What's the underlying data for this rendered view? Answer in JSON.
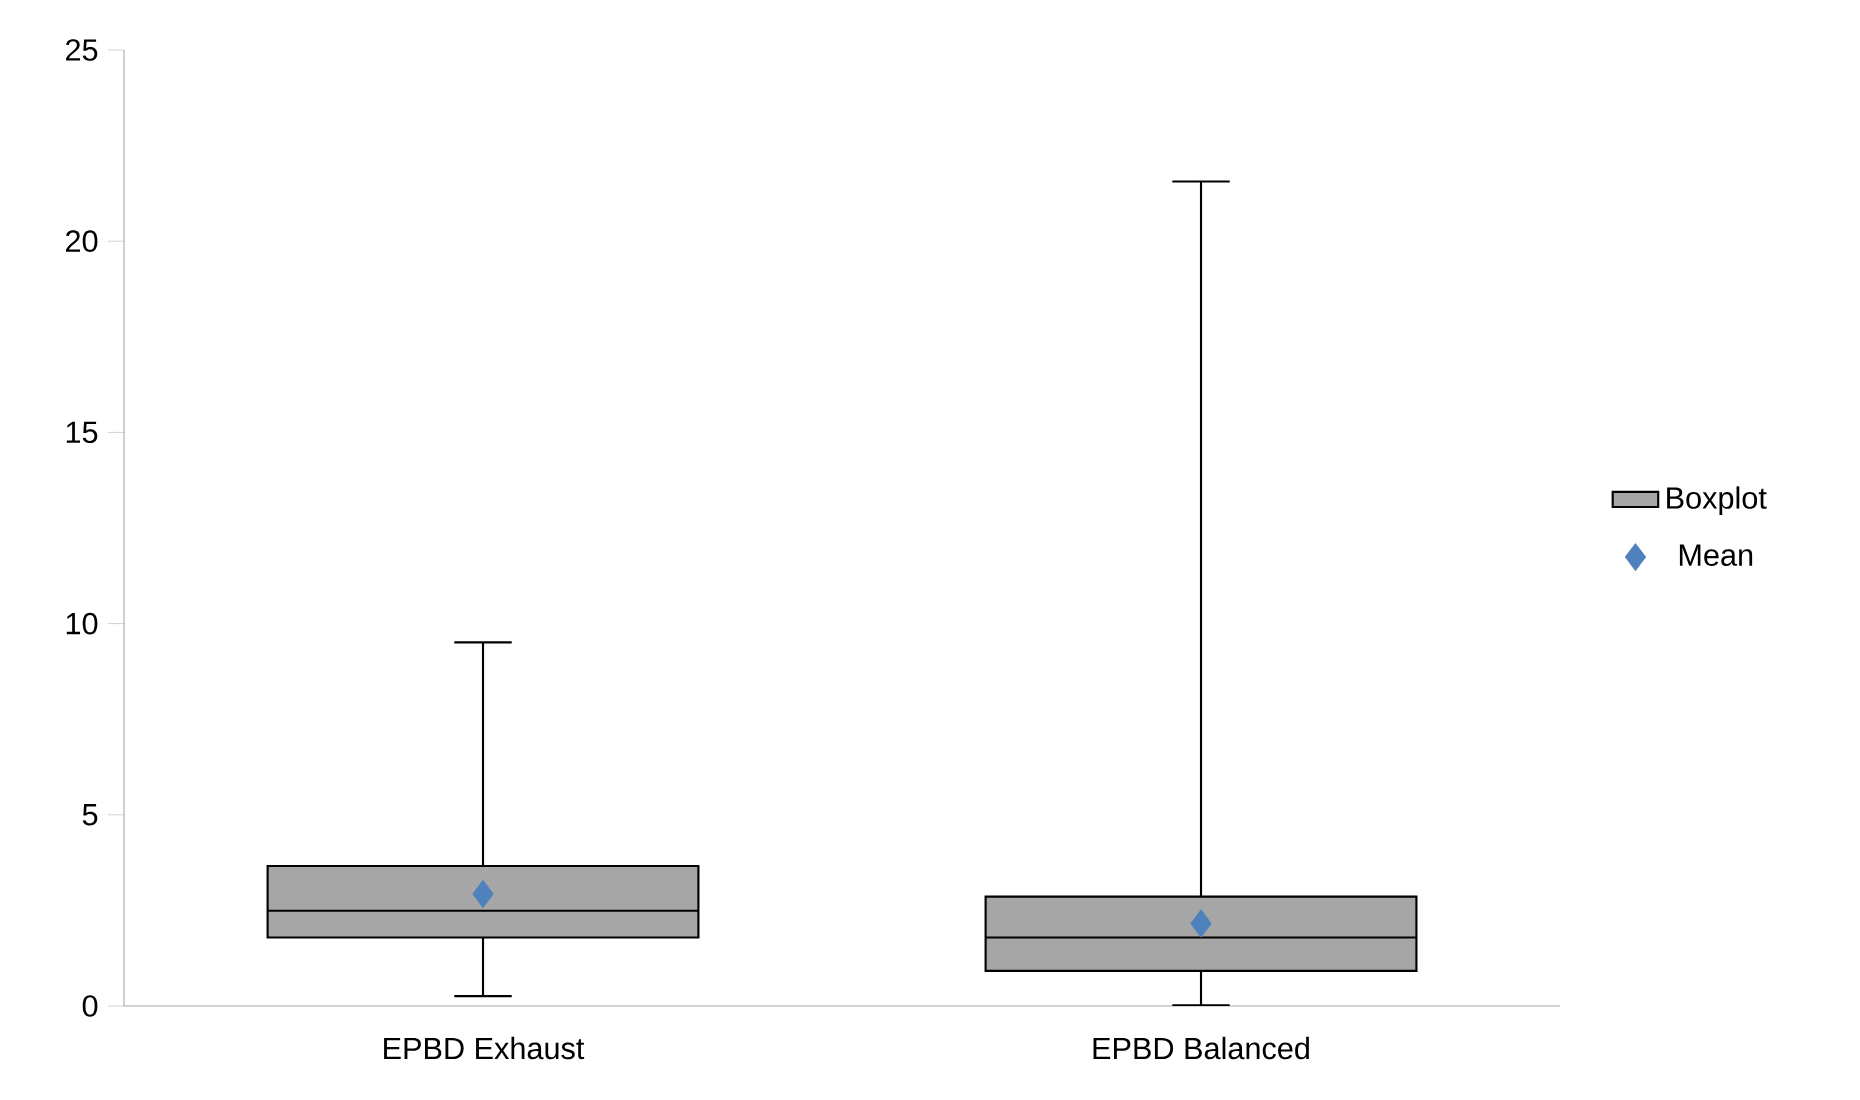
{
  "chart_data": {
    "type": "box",
    "categories": [
      "EPBD Exhaust",
      "EPBD Balanced"
    ],
    "series": [
      {
        "name": "Boxplot",
        "color": "#a6a6a6",
        "boxes": [
          {
            "low": 0.26,
            "q1": 1.79,
            "median": 2.49,
            "q3": 3.66,
            "high": 9.51
          },
          {
            "low": 0.02,
            "q1": 0.92,
            "median": 1.79,
            "q3": 2.86,
            "high": 21.56
          }
        ]
      },
      {
        "name": "Mean",
        "type": "scatter",
        "color": "#4f81bd",
        "marker": "diamond",
        "x": [
          "EPBD Exhaust",
          "EPBD Balanced"
        ],
        "values": [
          2.93,
          2.16
        ]
      }
    ],
    "ylim": [
      0,
      25
    ],
    "yticks": [
      0,
      5,
      10,
      15,
      20,
      25
    ],
    "grid": false,
    "legend": "right"
  }
}
